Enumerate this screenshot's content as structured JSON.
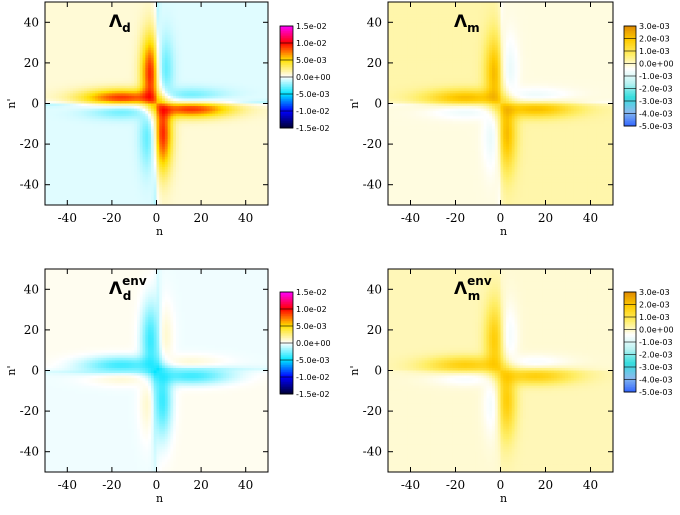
{
  "chart_data": [
    {
      "type": "heatmap",
      "title": "Λ",
      "title_subscript": "d",
      "title_superscript": "",
      "xlabel": "n",
      "ylabel": "n'",
      "xlim": [
        -50,
        50
      ],
      "ylim": [
        -50,
        50
      ],
      "x_ticks": [
        -40,
        -20,
        0,
        20,
        40
      ],
      "y_ticks": [
        40,
        20,
        0,
        -20,
        -40
      ],
      "colorbar": {
        "min": -0.015,
        "max": 0.015,
        "tick_labels": [
          "1.5e-02",
          "1.0e-02",
          "5.0e-03",
          "0.0e+00",
          "-5.0e-03",
          "-1.0e-02",
          "-1.5e-02"
        ],
        "tick_values": [
          0.015,
          0.01,
          0.005,
          0,
          -0.005,
          -0.01,
          -0.015
        ],
        "colors": [
          "#000033",
          "#0000ff",
          "#00e5ff",
          "#ffffff",
          "#ffe000",
          "#ff0000",
          "#ff00ff"
        ]
      },
      "pattern": {
        "diagonal_lobe_sign": 1,
        "off_diagonal_lobe_sign": -1,
        "lobe_peak": 0.012,
        "strip_value": -0.001,
        "quadrant_value": 0.0008,
        "quadrant_opposite_value": -0.0006
      }
    },
    {
      "type": "heatmap",
      "title": "Λ",
      "title_subscript": "m",
      "title_superscript": "",
      "xlabel": "n",
      "ylabel": "n'",
      "xlim": [
        -50,
        50
      ],
      "ylim": [
        -50,
        50
      ],
      "x_ticks": [
        -40,
        -20,
        0,
        20,
        40
      ],
      "y_ticks": [
        40,
        20,
        0,
        -20,
        -40
      ],
      "colorbar": {
        "min": -0.005,
        "max": 0.003,
        "tick_labels": [
          "3.0e-03",
          "2.0e-03",
          "1.0e-03",
          "0.0e+00",
          "-1.0e-03",
          "-2.0e-03",
          "-3.0e-03",
          "-4.0e-03",
          "-5.0e-03"
        ],
        "tick_values": [
          0.003,
          0.002,
          0.001,
          0,
          -0.001,
          -0.002,
          -0.003,
          -0.004,
          -0.005
        ],
        "colors": [
          "#3366ff",
          "#88bbee",
          "#33dddd",
          "#bbf2f2",
          "#ffffff",
          "#ffee66",
          "#ffcc00",
          "#e08a00"
        ]
      },
      "pattern": {
        "diagonal_lobe_sign": 1,
        "off_diagonal_lobe_sign": -1,
        "lobe_peak": 0.0028,
        "strip_value": -0.0002,
        "quadrant_value": 0.0002,
        "quadrant_opposite_value": -0.0002
      }
    },
    {
      "type": "heatmap",
      "title": "Λ",
      "title_subscript": "d",
      "title_superscript": "env",
      "xlabel": "n",
      "ylabel": "n'",
      "xlim": [
        -50,
        50
      ],
      "ylim": [
        -50,
        50
      ],
      "x_ticks": [
        -40,
        -20,
        0,
        20,
        40
      ],
      "y_ticks": [
        40,
        20,
        0,
        -20,
        -40
      ],
      "colorbar": {
        "min": -0.015,
        "max": 0.015,
        "tick_labels": [
          "1.5e-02",
          "1.0e-02",
          "5.0e-03",
          "0.0e+00",
          "-5.0e-03",
          "-1.0e-02",
          "-1.5e-02"
        ],
        "tick_values": [
          0.015,
          0.01,
          0.005,
          0,
          -0.005,
          -0.01,
          -0.015
        ],
        "colors": [
          "#000033",
          "#0000ff",
          "#00e5ff",
          "#ffffff",
          "#ffe000",
          "#ff0000",
          "#ff00ff"
        ]
      },
      "pattern": {
        "diagonal_lobe_sign": -1,
        "off_diagonal_lobe_sign": 1,
        "lobe_peak": 0.006,
        "strip_value": -0.0004,
        "quadrant_value": 0.0003,
        "quadrant_opposite_value": -0.0003
      }
    },
    {
      "type": "heatmap",
      "title": "Λ",
      "title_subscript": "m",
      "title_superscript": "env",
      "xlabel": "n",
      "ylabel": "n'",
      "xlim": [
        -50,
        50
      ],
      "ylim": [
        -50,
        50
      ],
      "x_ticks": [
        -40,
        -20,
        0,
        20,
        40
      ],
      "y_ticks": [
        40,
        20,
        0,
        -20,
        -40
      ],
      "colorbar": {
        "min": -0.005,
        "max": 0.003,
        "tick_labels": [
          "3.0e-03",
          "2.0e-03",
          "1.0e-03",
          "0.0e+00",
          "-1.0e-03",
          "-2.0e-03",
          "-3.0e-03",
          "-4.0e-03",
          "-5.0e-03"
        ],
        "tick_values": [
          0.003,
          0.002,
          0.001,
          0,
          -0.001,
          -0.002,
          -0.003,
          -0.004,
          -0.005
        ],
        "colors": [
          "#3366ff",
          "#88bbee",
          "#33dddd",
          "#bbf2f2",
          "#ffffff",
          "#ffee66",
          "#ffcc00",
          "#e08a00"
        ]
      },
      "pattern": {
        "diagonal_lobe_sign": 1,
        "off_diagonal_lobe_sign": -1,
        "lobe_peak": 0.0024,
        "strip_value": 0,
        "quadrant_value": 0.0001,
        "quadrant_opposite_value": -0.0001
      }
    }
  ]
}
